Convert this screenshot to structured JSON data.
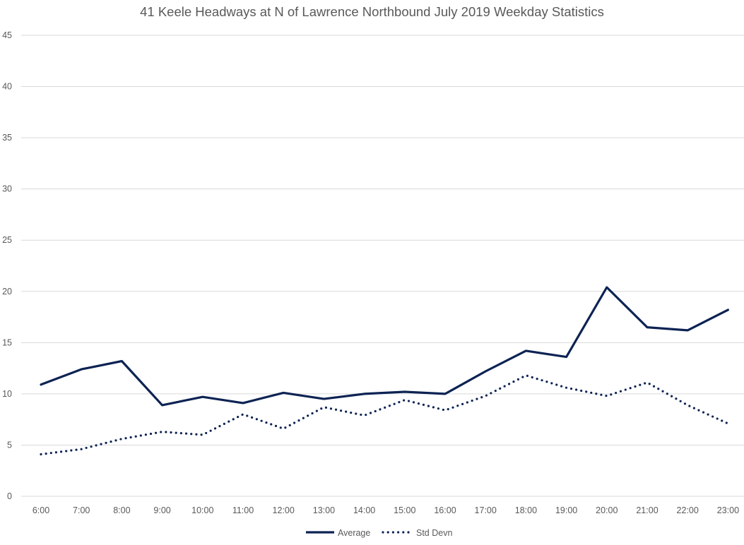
{
  "chart_data": {
    "type": "line",
    "title": "41 Keele Headways at N of Lawrence Northbound July 2019 Weekday Statistics",
    "xlabel": "",
    "ylabel": "",
    "ylim": [
      0,
      45
    ],
    "yticks": [
      "0",
      "5",
      "10",
      "15",
      "20",
      "25",
      "30",
      "35",
      "40",
      "45"
    ],
    "grid": true,
    "legend_position": "bottom",
    "categories": [
      "6:00",
      "7:00",
      "8:00",
      "9:00",
      "10:00",
      "11:00",
      "12:00",
      "13:00",
      "14:00",
      "15:00",
      "16:00",
      "17:00",
      "18:00",
      "19:00",
      "20:00",
      "21:00",
      "22:00",
      "23:00"
    ],
    "series": [
      {
        "name": "Average",
        "style": "solid",
        "color": "#0d2353",
        "values": [
          10.9,
          12.4,
          13.2,
          8.9,
          9.7,
          9.1,
          10.1,
          9.5,
          10.0,
          10.2,
          10.0,
          12.2,
          14.2,
          13.6,
          20.4,
          16.5,
          16.2,
          18.2
        ]
      },
      {
        "name": "Std Devn",
        "style": "dotted",
        "color": "#0d2353",
        "values": [
          4.1,
          4.6,
          5.6,
          6.3,
          6.0,
          8.0,
          6.6,
          8.7,
          7.9,
          9.4,
          8.4,
          9.8,
          11.8,
          10.6,
          9.8,
          11.1,
          8.9,
          7.1
        ]
      }
    ]
  }
}
